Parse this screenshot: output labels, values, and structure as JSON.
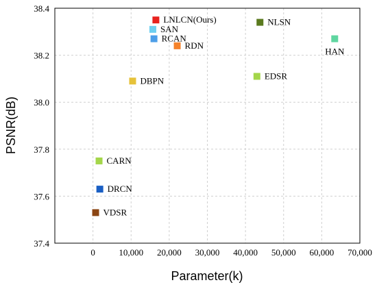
{
  "chart_data": {
    "type": "scatter",
    "title": "",
    "xlabel": "Parameter(k)",
    "ylabel": "PSNR(dB)",
    "xlim": [
      -10000,
      70000
    ],
    "ylim": [
      37.4,
      38.4
    ],
    "xticks": [
      0,
      10000,
      20000,
      30000,
      40000,
      50000,
      60000,
      70000
    ],
    "xtick_labels": [
      "0",
      "10,000",
      "20,000",
      "30,000",
      "40,000",
      "50,000",
      "60,000",
      "70,000"
    ],
    "yticks": [
      37.4,
      37.6,
      37.8,
      38.0,
      38.2,
      38.4
    ],
    "ytick_labels": [
      "37.4",
      "37.6",
      "37.8",
      "38.0",
      "38.2",
      "38.4"
    ],
    "grid": true,
    "legend": "none",
    "points": [
      {
        "label": "LNLCN(Ours)",
        "x": 16500,
        "y": 38.35,
        "color": "#e8231f",
        "label_pos": "right"
      },
      {
        "label": "SAN",
        "x": 15700,
        "y": 38.31,
        "color": "#6ecff0",
        "label_pos": "right"
      },
      {
        "label": "RCAN",
        "x": 16000,
        "y": 38.27,
        "color": "#4d9ee8",
        "label_pos": "right"
      },
      {
        "label": "RDN",
        "x": 22100,
        "y": 38.24,
        "color": "#f5822a",
        "label_pos": "right"
      },
      {
        "label": "NLSN",
        "x": 43800,
        "y": 38.34,
        "color": "#5a7a1e",
        "label_pos": "right"
      },
      {
        "label": "HAN",
        "x": 63400,
        "y": 38.27,
        "color": "#5fd6a0",
        "label_pos": "below"
      },
      {
        "label": "EDSR",
        "x": 43000,
        "y": 38.11,
        "color": "#a4d64a",
        "label_pos": "right"
      },
      {
        "label": "DBPN",
        "x": 10400,
        "y": 38.09,
        "color": "#e6c23a",
        "label_pos": "right"
      },
      {
        "label": "CARN",
        "x": 1600,
        "y": 37.75,
        "color": "#a4d64a",
        "label_pos": "right"
      },
      {
        "label": "DRCN",
        "x": 1800,
        "y": 37.63,
        "color": "#1a5fc4",
        "label_pos": "right"
      },
      {
        "label": "VDSR",
        "x": 700,
        "y": 37.53,
        "color": "#8b4513",
        "label_pos": "right"
      }
    ]
  }
}
